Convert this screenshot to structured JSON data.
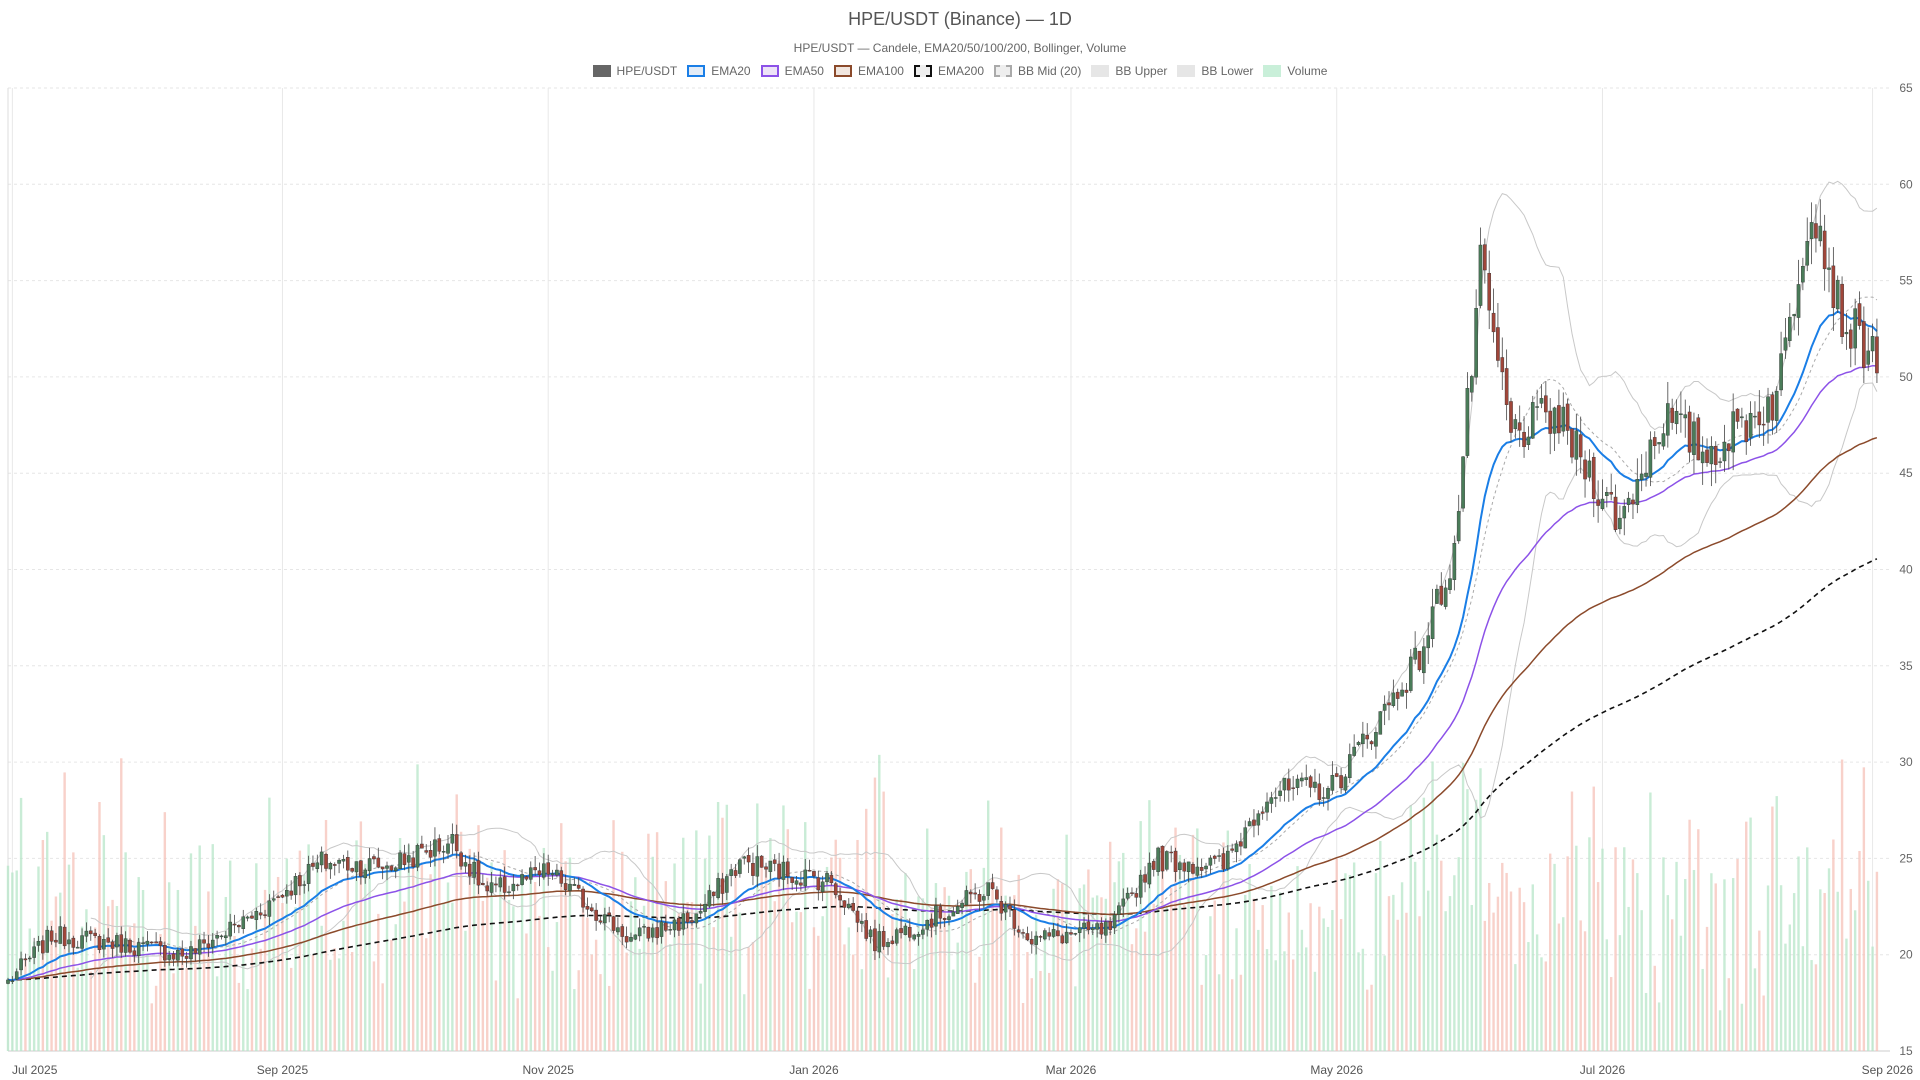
{
  "chart_data": {
    "type": "candlestick",
    "title": "HPE/USDT (Binance) — 1D",
    "subtitle": "HPE/USDT — Candele, EMA20/50/100/200, Bollinger, Volume",
    "ylim": [
      15,
      65
    ],
    "yticks": [
      15,
      20,
      25,
      30,
      35,
      40,
      45,
      50,
      55,
      60,
      65
    ],
    "xticks": [
      "Jul 2025",
      "Sep 2025",
      "Nov 2025",
      "Jan 2026",
      "Mar 2026",
      "May 2026",
      "Jul 2026",
      "Sep 2026"
    ],
    "grid": true,
    "legend_position": "top-center",
    "legend": [
      {
        "label": "HPE/USDT",
        "fill": "#666666",
        "stroke": "#666666",
        "dashed": false
      },
      {
        "label": "EMA20",
        "fill": "#e3ecf7",
        "stroke": "#1a7ee6",
        "dashed": false
      },
      {
        "label": "EMA50",
        "fill": "#ede3f7",
        "stroke": "#8c52e8",
        "dashed": false
      },
      {
        "label": "EMA100",
        "fill": "#f1e6df",
        "stroke": "#8b4a2b",
        "dashed": false
      },
      {
        "label": "EMA200",
        "fill": "#eeeeee",
        "stroke": "#111111",
        "dashed": true
      },
      {
        "label": "BB Mid (20)",
        "fill": "#eeeeee",
        "stroke": "#aaaaaa",
        "dashed": true
      },
      {
        "label": "BB Upper",
        "fill": "#e6e6e6",
        "stroke": "#e6e6e6",
        "dashed": false
      },
      {
        "label": "BB Lower",
        "fill": "#e6e6e6",
        "stroke": "#e6e6e6",
        "dashed": false
      },
      {
        "label": "Volume",
        "fill": "#c9efd9",
        "stroke": "#c9efd9",
        "dashed": false
      }
    ],
    "colors": {
      "up": "#4a7c59",
      "down": "#a0463a",
      "ema20": "#1a7ee6",
      "ema50": "#8c52e8",
      "ema100": "#8b4a2b",
      "ema200": "#111111",
      "bb_mid": "#aaaaaa",
      "bb_band": "#c8c8c8",
      "vol_up": "#b7e6c8",
      "vol_down": "#f5c2b8"
    },
    "price_path": [
      {
        "date": "2025-06-30",
        "close": 18.6
      },
      {
        "date": "2025-07-10",
        "close": 21.0
      },
      {
        "date": "2025-07-25",
        "close": 20.6
      },
      {
        "date": "2025-08-10",
        "close": 20.0
      },
      {
        "date": "2025-08-25",
        "close": 22.0
      },
      {
        "date": "2025-09-10",
        "close": 24.8
      },
      {
        "date": "2025-09-25",
        "close": 24.6
      },
      {
        "date": "2025-10-10",
        "close": 25.9
      },
      {
        "date": "2025-10-18",
        "close": 23.2
      },
      {
        "date": "2025-11-01",
        "close": 24.3
      },
      {
        "date": "2025-11-20",
        "close": 20.8
      },
      {
        "date": "2025-12-05",
        "close": 22.0
      },
      {
        "date": "2025-12-15",
        "close": 24.8
      },
      {
        "date": "2026-01-05",
        "close": 23.8
      },
      {
        "date": "2026-01-15",
        "close": 20.6
      },
      {
        "date": "2026-02-01",
        "close": 22.3
      },
      {
        "date": "2026-02-10",
        "close": 23.4
      },
      {
        "date": "2026-02-20",
        "close": 20.8
      },
      {
        "date": "2026-03-10",
        "close": 21.3
      },
      {
        "date": "2026-03-20",
        "close": 25.0
      },
      {
        "date": "2026-04-05",
        "close": 24.6
      },
      {
        "date": "2026-04-15",
        "close": 28.4
      },
      {
        "date": "2026-04-30",
        "close": 28.7
      },
      {
        "date": "2026-05-10",
        "close": 32.0
      },
      {
        "date": "2026-05-20",
        "close": 35.5
      },
      {
        "date": "2026-05-28",
        "close": 41.0
      },
      {
        "date": "2026-06-03",
        "close": 55.5
      },
      {
        "date": "2026-06-10",
        "close": 47.0
      },
      {
        "date": "2026-06-20",
        "close": 48.0
      },
      {
        "date": "2026-07-05",
        "close": 42.5
      },
      {
        "date": "2026-07-15",
        "close": 48.0
      },
      {
        "date": "2026-07-25",
        "close": 46.0
      },
      {
        "date": "2026-08-10",
        "close": 49.0
      },
      {
        "date": "2026-08-18",
        "close": 59.5
      },
      {
        "date": "2026-08-25",
        "close": 53.0
      },
      {
        "date": "2026-09-02",
        "close": 51.0
      }
    ]
  }
}
